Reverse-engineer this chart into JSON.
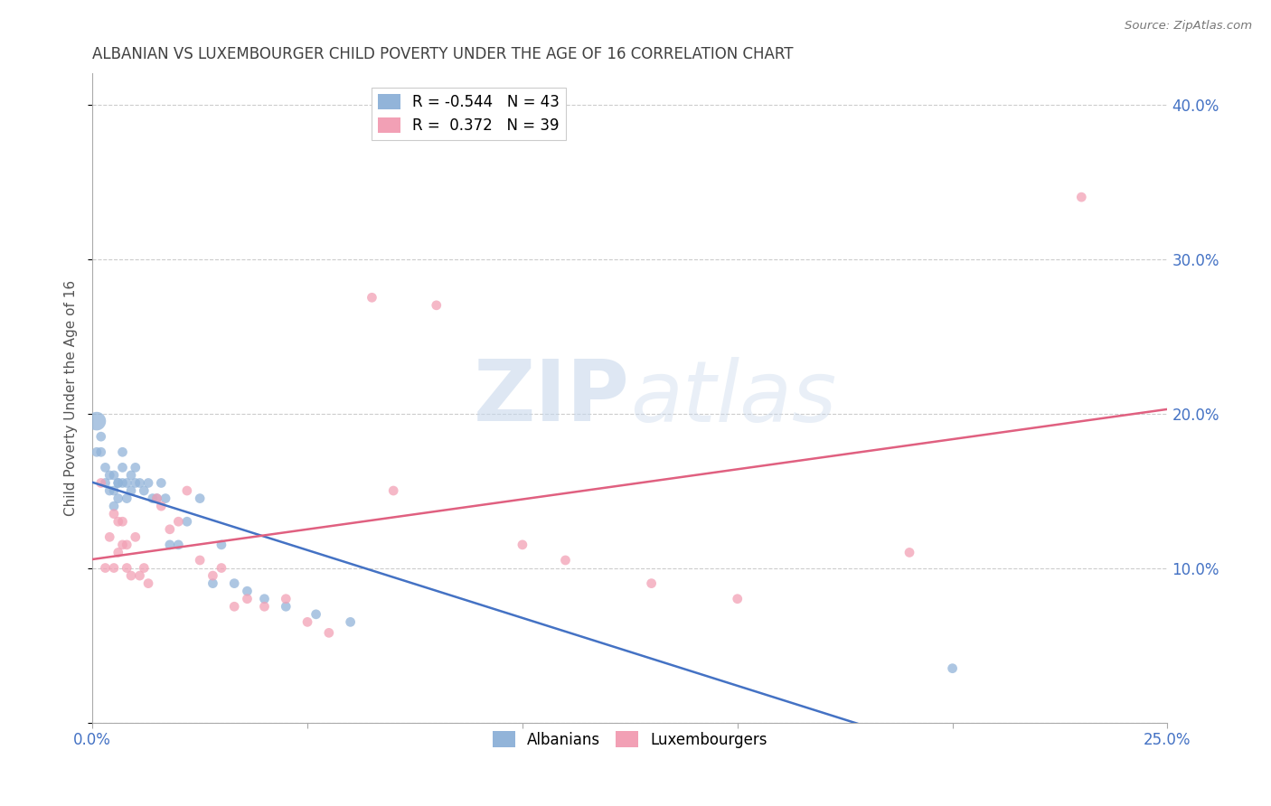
{
  "title": "ALBANIAN VS LUXEMBOURGER CHILD POVERTY UNDER THE AGE OF 16 CORRELATION CHART",
  "source": "Source: ZipAtlas.com",
  "ylabel": "Child Poverty Under the Age of 16",
  "xlim": [
    0.0,
    0.25
  ],
  "ylim": [
    0.0,
    0.42
  ],
  "xticks": [
    0.0,
    0.05,
    0.1,
    0.15,
    0.2,
    0.25
  ],
  "yticks": [
    0.0,
    0.1,
    0.2,
    0.3,
    0.4
  ],
  "ytick_labels": [
    "",
    "10.0%",
    "20.0%",
    "30.0%",
    "40.0%"
  ],
  "xtick_labels": [
    "0.0%",
    "",
    "",
    "",
    "",
    "25.0%"
  ],
  "watermark_zip": "ZIP",
  "watermark_atlas": "atlas",
  "albanian_color": "#92B4D9",
  "luxembourger_color": "#F2A0B5",
  "albanian_line_color": "#4472C4",
  "luxembourger_line_color": "#E06080",
  "legend_R_albanian": "R = -0.544",
  "legend_N_albanian": "N = 43",
  "legend_R_luxembourger": "R =  0.372",
  "legend_N_luxembourger": "N = 39",
  "albanian_x": [
    0.001,
    0.001,
    0.002,
    0.002,
    0.003,
    0.003,
    0.004,
    0.004,
    0.005,
    0.005,
    0.005,
    0.006,
    0.006,
    0.006,
    0.007,
    0.007,
    0.007,
    0.008,
    0.008,
    0.009,
    0.009,
    0.01,
    0.01,
    0.011,
    0.012,
    0.013,
    0.014,
    0.015,
    0.016,
    0.017,
    0.018,
    0.02,
    0.022,
    0.025,
    0.028,
    0.03,
    0.033,
    0.036,
    0.04,
    0.045,
    0.052,
    0.06,
    0.2
  ],
  "albanian_y": [
    0.195,
    0.175,
    0.185,
    0.175,
    0.165,
    0.155,
    0.16,
    0.15,
    0.16,
    0.15,
    0.14,
    0.155,
    0.145,
    0.155,
    0.175,
    0.165,
    0.155,
    0.155,
    0.145,
    0.16,
    0.15,
    0.165,
    0.155,
    0.155,
    0.15,
    0.155,
    0.145,
    0.145,
    0.155,
    0.145,
    0.115,
    0.115,
    0.13,
    0.145,
    0.09,
    0.115,
    0.09,
    0.085,
    0.08,
    0.075,
    0.07,
    0.065,
    0.035
  ],
  "albanian_sizes": [
    220,
    60,
    60,
    60,
    60,
    60,
    60,
    60,
    60,
    60,
    60,
    60,
    60,
    60,
    60,
    60,
    60,
    60,
    60,
    60,
    60,
    60,
    60,
    60,
    60,
    60,
    60,
    60,
    60,
    60,
    60,
    60,
    60,
    60,
    60,
    60,
    60,
    60,
    60,
    60,
    60,
    60,
    60
  ],
  "luxembourger_x": [
    0.002,
    0.003,
    0.004,
    0.005,
    0.005,
    0.006,
    0.006,
    0.007,
    0.007,
    0.008,
    0.008,
    0.009,
    0.01,
    0.011,
    0.012,
    0.013,
    0.015,
    0.016,
    0.018,
    0.02,
    0.022,
    0.025,
    0.028,
    0.03,
    0.033,
    0.036,
    0.04,
    0.045,
    0.05,
    0.055,
    0.065,
    0.07,
    0.08,
    0.1,
    0.11,
    0.13,
    0.15,
    0.19,
    0.23
  ],
  "luxembourger_y": [
    0.155,
    0.1,
    0.12,
    0.135,
    0.1,
    0.13,
    0.11,
    0.13,
    0.115,
    0.115,
    0.1,
    0.095,
    0.12,
    0.095,
    0.1,
    0.09,
    0.145,
    0.14,
    0.125,
    0.13,
    0.15,
    0.105,
    0.095,
    0.1,
    0.075,
    0.08,
    0.075,
    0.08,
    0.065,
    0.058,
    0.275,
    0.15,
    0.27,
    0.115,
    0.105,
    0.09,
    0.08,
    0.11,
    0.34
  ],
  "luxembourger_sizes": [
    60,
    60,
    60,
    60,
    60,
    60,
    60,
    60,
    60,
    60,
    60,
    60,
    60,
    60,
    60,
    60,
    60,
    60,
    60,
    60,
    60,
    60,
    60,
    60,
    60,
    60,
    60,
    60,
    60,
    60,
    60,
    60,
    60,
    60,
    60,
    60,
    60,
    60,
    60
  ],
  "grid_color": "#CCCCCC",
  "background_color": "#FFFFFF",
  "axis_label_color": "#4472C4",
  "title_color": "#404040"
}
